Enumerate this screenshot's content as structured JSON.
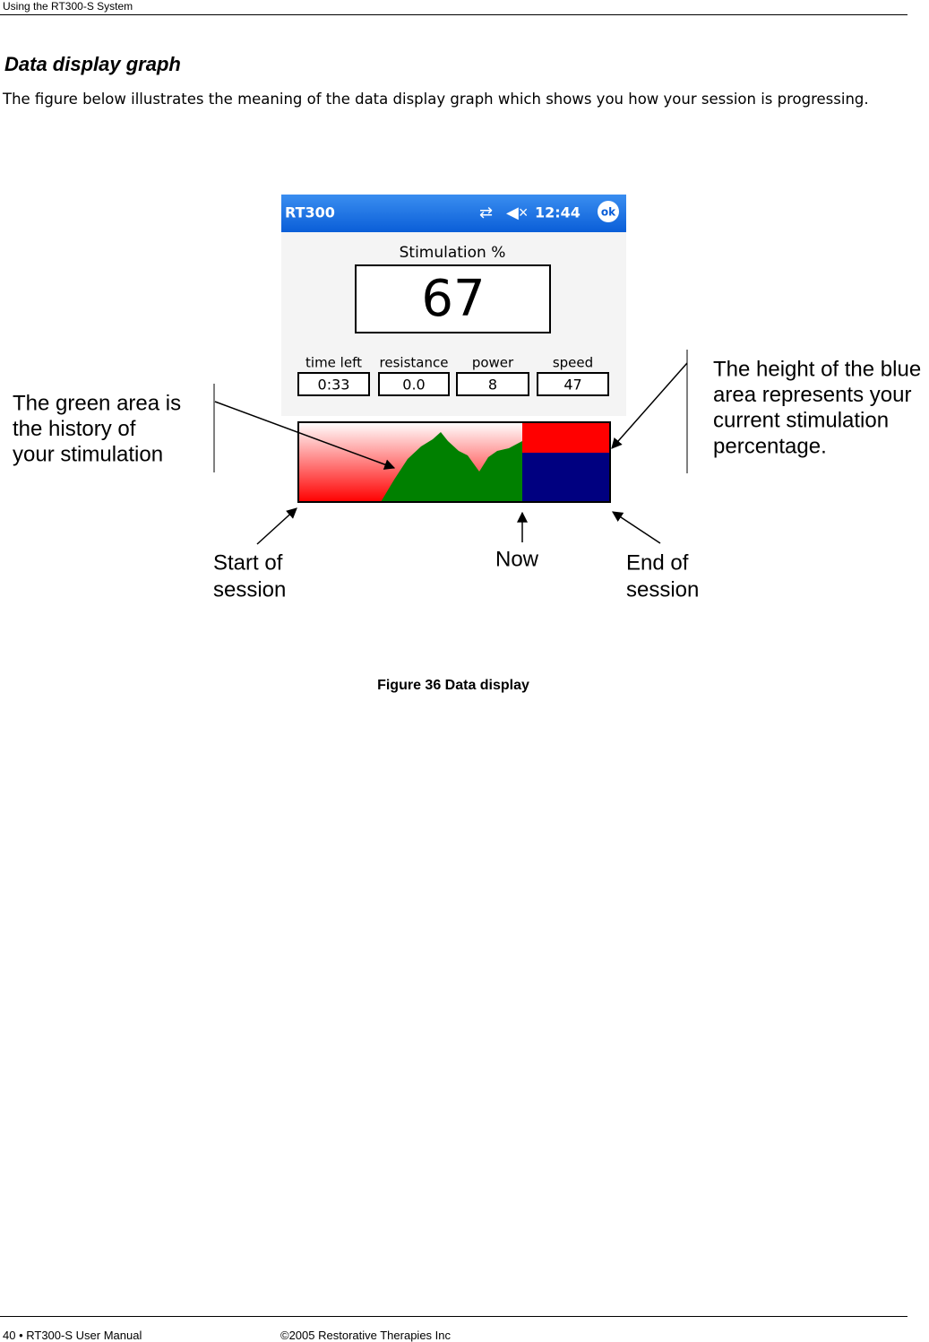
{
  "header": {
    "running_title": "Using the RT300-S System"
  },
  "section": {
    "title": "Data display graph",
    "body": "The figure below illustrates the meaning of the data display graph which shows you how your session is progressing."
  },
  "screen": {
    "app_name": "RT300",
    "clock": "12:44",
    "ok_button": "ok",
    "stimulation_label": "Stimulation %",
    "stimulation_value": "67",
    "fields": [
      {
        "label": "time left",
        "value": "0:33"
      },
      {
        "label": "resistance",
        "value": "0.0"
      },
      {
        "label": "power",
        "value": "8"
      },
      {
        "label": "speed",
        "value": "47"
      }
    ]
  },
  "annotations": {
    "green_area": [
      "The green area is",
      "the history of",
      "your stimulation"
    ],
    "blue_height": [
      "The height of the blue",
      "area represents your",
      "current stimulation",
      "percentage."
    ],
    "start": [
      "Start of",
      "session"
    ],
    "now": [
      "Now"
    ],
    "end": [
      "End of",
      "session"
    ]
  },
  "figure": {
    "caption": "Figure 36 Data display"
  },
  "footer": {
    "page": "40 • RT300-S User Manual",
    "copyright": "©2005 Restorative Therapies Inc"
  }
}
